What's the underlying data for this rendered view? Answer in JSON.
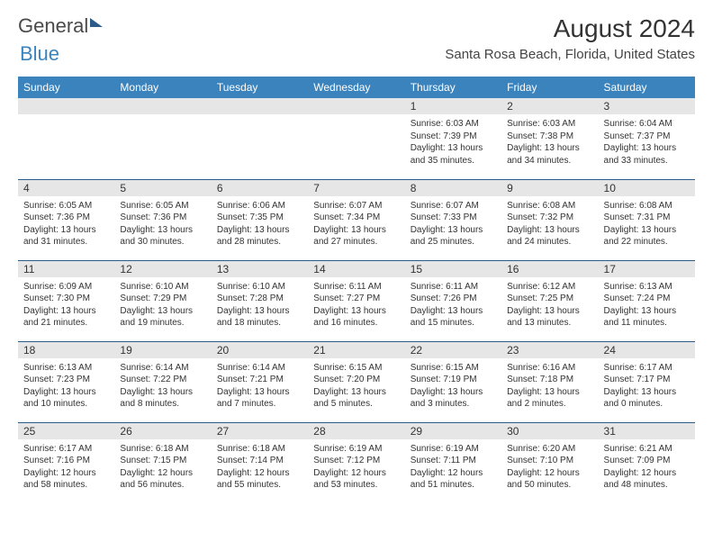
{
  "logo": {
    "word1": "General",
    "word2": "Blue"
  },
  "title": "August 2024",
  "subtitle": "Santa Rosa Beach, Florida, United States",
  "headerBg": "#3b83bd",
  "borderColor": "#2a5b8a",
  "dayBg": "#e6e6e6",
  "textColor": "#333333",
  "dayHeaders": [
    "Sunday",
    "Monday",
    "Tuesday",
    "Wednesday",
    "Thursday",
    "Friday",
    "Saturday"
  ],
  "rows": [
    [
      {
        "num": "",
        "sunrise": "",
        "sunset": "",
        "daylight": ""
      },
      {
        "num": "",
        "sunrise": "",
        "sunset": "",
        "daylight": ""
      },
      {
        "num": "",
        "sunrise": "",
        "sunset": "",
        "daylight": ""
      },
      {
        "num": "",
        "sunrise": "",
        "sunset": "",
        "daylight": ""
      },
      {
        "num": "1",
        "sunrise": "Sunrise: 6:03 AM",
        "sunset": "Sunset: 7:39 PM",
        "daylight": "Daylight: 13 hours and 35 minutes."
      },
      {
        "num": "2",
        "sunrise": "Sunrise: 6:03 AM",
        "sunset": "Sunset: 7:38 PM",
        "daylight": "Daylight: 13 hours and 34 minutes."
      },
      {
        "num": "3",
        "sunrise": "Sunrise: 6:04 AM",
        "sunset": "Sunset: 7:37 PM",
        "daylight": "Daylight: 13 hours and 33 minutes."
      }
    ],
    [
      {
        "num": "4",
        "sunrise": "Sunrise: 6:05 AM",
        "sunset": "Sunset: 7:36 PM",
        "daylight": "Daylight: 13 hours and 31 minutes."
      },
      {
        "num": "5",
        "sunrise": "Sunrise: 6:05 AM",
        "sunset": "Sunset: 7:36 PM",
        "daylight": "Daylight: 13 hours and 30 minutes."
      },
      {
        "num": "6",
        "sunrise": "Sunrise: 6:06 AM",
        "sunset": "Sunset: 7:35 PM",
        "daylight": "Daylight: 13 hours and 28 minutes."
      },
      {
        "num": "7",
        "sunrise": "Sunrise: 6:07 AM",
        "sunset": "Sunset: 7:34 PM",
        "daylight": "Daylight: 13 hours and 27 minutes."
      },
      {
        "num": "8",
        "sunrise": "Sunrise: 6:07 AM",
        "sunset": "Sunset: 7:33 PM",
        "daylight": "Daylight: 13 hours and 25 minutes."
      },
      {
        "num": "9",
        "sunrise": "Sunrise: 6:08 AM",
        "sunset": "Sunset: 7:32 PM",
        "daylight": "Daylight: 13 hours and 24 minutes."
      },
      {
        "num": "10",
        "sunrise": "Sunrise: 6:08 AM",
        "sunset": "Sunset: 7:31 PM",
        "daylight": "Daylight: 13 hours and 22 minutes."
      }
    ],
    [
      {
        "num": "11",
        "sunrise": "Sunrise: 6:09 AM",
        "sunset": "Sunset: 7:30 PM",
        "daylight": "Daylight: 13 hours and 21 minutes."
      },
      {
        "num": "12",
        "sunrise": "Sunrise: 6:10 AM",
        "sunset": "Sunset: 7:29 PM",
        "daylight": "Daylight: 13 hours and 19 minutes."
      },
      {
        "num": "13",
        "sunrise": "Sunrise: 6:10 AM",
        "sunset": "Sunset: 7:28 PM",
        "daylight": "Daylight: 13 hours and 18 minutes."
      },
      {
        "num": "14",
        "sunrise": "Sunrise: 6:11 AM",
        "sunset": "Sunset: 7:27 PM",
        "daylight": "Daylight: 13 hours and 16 minutes."
      },
      {
        "num": "15",
        "sunrise": "Sunrise: 6:11 AM",
        "sunset": "Sunset: 7:26 PM",
        "daylight": "Daylight: 13 hours and 15 minutes."
      },
      {
        "num": "16",
        "sunrise": "Sunrise: 6:12 AM",
        "sunset": "Sunset: 7:25 PM",
        "daylight": "Daylight: 13 hours and 13 minutes."
      },
      {
        "num": "17",
        "sunrise": "Sunrise: 6:13 AM",
        "sunset": "Sunset: 7:24 PM",
        "daylight": "Daylight: 13 hours and 11 minutes."
      }
    ],
    [
      {
        "num": "18",
        "sunrise": "Sunrise: 6:13 AM",
        "sunset": "Sunset: 7:23 PM",
        "daylight": "Daylight: 13 hours and 10 minutes."
      },
      {
        "num": "19",
        "sunrise": "Sunrise: 6:14 AM",
        "sunset": "Sunset: 7:22 PM",
        "daylight": "Daylight: 13 hours and 8 minutes."
      },
      {
        "num": "20",
        "sunrise": "Sunrise: 6:14 AM",
        "sunset": "Sunset: 7:21 PM",
        "daylight": "Daylight: 13 hours and 7 minutes."
      },
      {
        "num": "21",
        "sunrise": "Sunrise: 6:15 AM",
        "sunset": "Sunset: 7:20 PM",
        "daylight": "Daylight: 13 hours and 5 minutes."
      },
      {
        "num": "22",
        "sunrise": "Sunrise: 6:15 AM",
        "sunset": "Sunset: 7:19 PM",
        "daylight": "Daylight: 13 hours and 3 minutes."
      },
      {
        "num": "23",
        "sunrise": "Sunrise: 6:16 AM",
        "sunset": "Sunset: 7:18 PM",
        "daylight": "Daylight: 13 hours and 2 minutes."
      },
      {
        "num": "24",
        "sunrise": "Sunrise: 6:17 AM",
        "sunset": "Sunset: 7:17 PM",
        "daylight": "Daylight: 13 hours and 0 minutes."
      }
    ],
    [
      {
        "num": "25",
        "sunrise": "Sunrise: 6:17 AM",
        "sunset": "Sunset: 7:16 PM",
        "daylight": "Daylight: 12 hours and 58 minutes."
      },
      {
        "num": "26",
        "sunrise": "Sunrise: 6:18 AM",
        "sunset": "Sunset: 7:15 PM",
        "daylight": "Daylight: 12 hours and 56 minutes."
      },
      {
        "num": "27",
        "sunrise": "Sunrise: 6:18 AM",
        "sunset": "Sunset: 7:14 PM",
        "daylight": "Daylight: 12 hours and 55 minutes."
      },
      {
        "num": "28",
        "sunrise": "Sunrise: 6:19 AM",
        "sunset": "Sunset: 7:12 PM",
        "daylight": "Daylight: 12 hours and 53 minutes."
      },
      {
        "num": "29",
        "sunrise": "Sunrise: 6:19 AM",
        "sunset": "Sunset: 7:11 PM",
        "daylight": "Daylight: 12 hours and 51 minutes."
      },
      {
        "num": "30",
        "sunrise": "Sunrise: 6:20 AM",
        "sunset": "Sunset: 7:10 PM",
        "daylight": "Daylight: 12 hours and 50 minutes."
      },
      {
        "num": "31",
        "sunrise": "Sunrise: 6:21 AM",
        "sunset": "Sunset: 7:09 PM",
        "daylight": "Daylight: 12 hours and 48 minutes."
      }
    ]
  ]
}
